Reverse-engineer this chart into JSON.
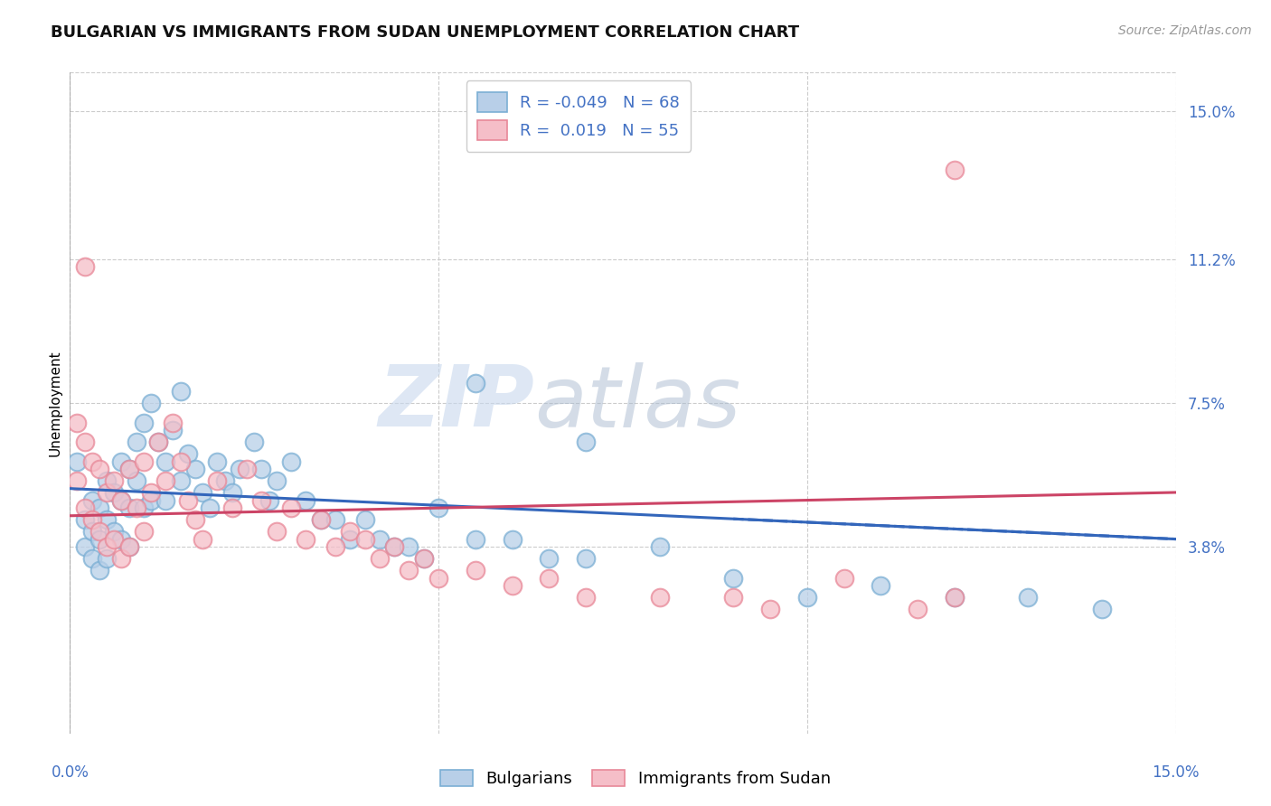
{
  "title": "BULGARIAN VS IMMIGRANTS FROM SUDAN UNEMPLOYMENT CORRELATION CHART",
  "source": "Source: ZipAtlas.com",
  "ylabel": "Unemployment",
  "xlim": [
    0.0,
    0.15
  ],
  "ylim": [
    -0.01,
    0.16
  ],
  "ytick_positions": [
    0.038,
    0.075,
    0.112,
    0.15
  ],
  "ytick_labels": [
    "3.8%",
    "7.5%",
    "11.2%",
    "15.0%"
  ],
  "grid_color": "#cccccc",
  "background_color": "#ffffff",
  "blue_marker_face": "#b8cfe8",
  "blue_marker_edge": "#7bafd4",
  "pink_marker_face": "#f5bec8",
  "pink_marker_edge": "#e88898",
  "blue_line_color": "#3366bb",
  "pink_line_color": "#cc4466",
  "legend_blue_r": "-0.049",
  "legend_blue_n": "68",
  "legend_pink_r": "0.019",
  "legend_pink_n": "55",
  "watermark_zip": "ZIP",
  "watermark_atlas": "atlas",
  "blue_scatter_x": [
    0.001,
    0.002,
    0.002,
    0.003,
    0.003,
    0.003,
    0.004,
    0.004,
    0.004,
    0.005,
    0.005,
    0.005,
    0.006,
    0.006,
    0.007,
    0.007,
    0.007,
    0.008,
    0.008,
    0.008,
    0.009,
    0.009,
    0.01,
    0.01,
    0.011,
    0.011,
    0.012,
    0.013,
    0.013,
    0.014,
    0.015,
    0.015,
    0.016,
    0.017,
    0.018,
    0.019,
    0.02,
    0.021,
    0.022,
    0.023,
    0.025,
    0.026,
    0.027,
    0.028,
    0.03,
    0.032,
    0.034,
    0.036,
    0.038,
    0.04,
    0.042,
    0.044,
    0.046,
    0.048,
    0.05,
    0.055,
    0.06,
    0.065,
    0.07,
    0.08,
    0.09,
    0.1,
    0.11,
    0.12,
    0.13,
    0.14,
    0.055,
    0.07
  ],
  "blue_scatter_y": [
    0.06,
    0.045,
    0.038,
    0.05,
    0.042,
    0.035,
    0.048,
    0.04,
    0.032,
    0.055,
    0.045,
    0.035,
    0.052,
    0.042,
    0.06,
    0.05,
    0.04,
    0.058,
    0.048,
    0.038,
    0.065,
    0.055,
    0.07,
    0.048,
    0.075,
    0.05,
    0.065,
    0.06,
    0.05,
    0.068,
    0.078,
    0.055,
    0.062,
    0.058,
    0.052,
    0.048,
    0.06,
    0.055,
    0.052,
    0.058,
    0.065,
    0.058,
    0.05,
    0.055,
    0.06,
    0.05,
    0.045,
    0.045,
    0.04,
    0.045,
    0.04,
    0.038,
    0.038,
    0.035,
    0.048,
    0.04,
    0.04,
    0.035,
    0.035,
    0.038,
    0.03,
    0.025,
    0.028,
    0.025,
    0.025,
    0.022,
    0.08,
    0.065
  ],
  "pink_scatter_x": [
    0.001,
    0.001,
    0.002,
    0.002,
    0.003,
    0.003,
    0.004,
    0.004,
    0.005,
    0.005,
    0.006,
    0.006,
    0.007,
    0.007,
    0.008,
    0.008,
    0.009,
    0.01,
    0.01,
    0.011,
    0.012,
    0.013,
    0.014,
    0.015,
    0.016,
    0.017,
    0.018,
    0.02,
    0.022,
    0.024,
    0.026,
    0.028,
    0.03,
    0.032,
    0.034,
    0.036,
    0.038,
    0.04,
    0.042,
    0.044,
    0.046,
    0.048,
    0.05,
    0.055,
    0.06,
    0.065,
    0.07,
    0.08,
    0.09,
    0.095,
    0.105,
    0.115,
    0.12,
    0.002,
    0.12
  ],
  "pink_scatter_y": [
    0.07,
    0.055,
    0.065,
    0.048,
    0.06,
    0.045,
    0.058,
    0.042,
    0.052,
    0.038,
    0.055,
    0.04,
    0.05,
    0.035,
    0.058,
    0.038,
    0.048,
    0.06,
    0.042,
    0.052,
    0.065,
    0.055,
    0.07,
    0.06,
    0.05,
    0.045,
    0.04,
    0.055,
    0.048,
    0.058,
    0.05,
    0.042,
    0.048,
    0.04,
    0.045,
    0.038,
    0.042,
    0.04,
    0.035,
    0.038,
    0.032,
    0.035,
    0.03,
    0.032,
    0.028,
    0.03,
    0.025,
    0.025,
    0.025,
    0.022,
    0.03,
    0.022,
    0.025,
    0.11,
    0.135
  ],
  "blue_line_x": [
    0.0,
    0.15
  ],
  "blue_line_y": [
    0.053,
    0.04
  ],
  "pink_line_x": [
    0.0,
    0.15
  ],
  "pink_line_y": [
    0.046,
    0.052
  ],
  "title_fontsize": 13,
  "source_fontsize": 10,
  "axis_label_fontsize": 11,
  "tick_fontsize": 12,
  "legend_fontsize": 13
}
